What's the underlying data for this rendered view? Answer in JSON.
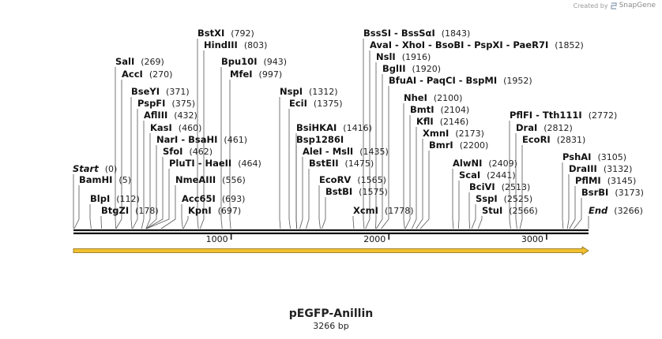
{
  "credit": {
    "prefix": "Created by",
    "brand": "SnapGene"
  },
  "map": {
    "title": "pEGFP-Anillin",
    "length_label": "3266 bp",
    "length_bp": 3266,
    "ticks": [
      {
        "bp": 1000,
        "label": "1000"
      },
      {
        "bp": 2000,
        "label": "2000"
      },
      {
        "bp": 3000,
        "label": "3000"
      }
    ],
    "features": [
      {
        "name": "Start",
        "pos": "(0)",
        "bp": 0,
        "italic": true
      },
      {
        "name": "End",
        "pos": "(3266)",
        "bp": 3266,
        "italic": true
      }
    ],
    "sites": [
      {
        "names": [
          "BstXI"
        ],
        "pos": "(792)",
        "bp": 792
      },
      {
        "names": [
          "HindIII"
        ],
        "pos": "(803)",
        "bp": 803
      },
      {
        "names": [
          "SalI"
        ],
        "pos": "(269)",
        "bp": 269
      },
      {
        "names": [
          "AccI"
        ],
        "pos": "(270)",
        "bp": 270
      },
      {
        "names": [
          "Bpu10I"
        ],
        "pos": "(943)",
        "bp": 943
      },
      {
        "names": [
          "MfeI"
        ],
        "pos": "(997)",
        "bp": 997
      },
      {
        "names": [
          "BseYI"
        ],
        "pos": "(371)",
        "bp": 371
      },
      {
        "names": [
          "PspFI"
        ],
        "pos": "(375)",
        "bp": 375
      },
      {
        "names": [
          "AflIII"
        ],
        "pos": "(432)",
        "bp": 432
      },
      {
        "names": [
          "KasI"
        ],
        "pos": "(460)",
        "bp": 460
      },
      {
        "names": [
          "NarI",
          "BsaHI"
        ],
        "pos": "(461)",
        "bp": 461
      },
      {
        "names": [
          "SfoI"
        ],
        "pos": "(462)",
        "bp": 462
      },
      {
        "names": [
          "PluTI",
          "HaeII"
        ],
        "pos": "(464)",
        "bp": 464
      },
      {
        "names": [
          "BamHI"
        ],
        "pos": "(5)",
        "bp": 5
      },
      {
        "names": [
          "NmeAIII"
        ],
        "pos": "(556)",
        "bp": 556
      },
      {
        "names": [
          "BlpI"
        ],
        "pos": "(112)",
        "bp": 112
      },
      {
        "names": [
          "Acc65I"
        ],
        "pos": "(693)",
        "bp": 693
      },
      {
        "names": [
          "BtgZI"
        ],
        "pos": "(178)",
        "bp": 178
      },
      {
        "names": [
          "KpnI"
        ],
        "pos": "(697)",
        "bp": 697
      },
      {
        "names": [
          "NspI"
        ],
        "pos": "(1312)",
        "bp": 1312
      },
      {
        "names": [
          "EciI"
        ],
        "pos": "(1375)",
        "bp": 1375
      },
      {
        "names": [
          "BsiHKAI"
        ],
        "pos": "(1416)",
        "bp": 1416
      },
      {
        "names": [
          "Bsp1286I"
        ],
        "pos": "",
        "bp": 1416
      },
      {
        "names": [
          "AleI",
          "MslI"
        ],
        "pos": "(1435)",
        "bp": 1435
      },
      {
        "names": [
          "BstEII"
        ],
        "pos": "(1475)",
        "bp": 1475
      },
      {
        "names": [
          "EcoRV"
        ],
        "pos": "(1565)",
        "bp": 1565
      },
      {
        "names": [
          "BstBI"
        ],
        "pos": "(1575)",
        "bp": 1575
      },
      {
        "names": [
          "XcmI"
        ],
        "pos": "(1778)",
        "bp": 1778
      },
      {
        "names": [
          "BssSI",
          "BssSαI"
        ],
        "pos": "(1843)",
        "bp": 1843
      },
      {
        "names": [
          "AvaI",
          "XhoI",
          "BsoBI",
          "PspXI",
          "PaeR7I"
        ],
        "pos": "(1852)",
        "bp": 1852
      },
      {
        "names": [
          "NslI"
        ],
        "pos": "(1916)",
        "bp": 1916
      },
      {
        "names": [
          "BglII"
        ],
        "pos": "(1920)",
        "bp": 1920
      },
      {
        "names": [
          "BfuAI",
          "PaqCI",
          "BspMI"
        ],
        "pos": "(1952)",
        "bp": 1952
      },
      {
        "names": [
          "NheI"
        ],
        "pos": "(2100)",
        "bp": 2100
      },
      {
        "names": [
          "BmtI"
        ],
        "pos": "(2104)",
        "bp": 2104
      },
      {
        "names": [
          "KflI"
        ],
        "pos": "(2146)",
        "bp": 2146
      },
      {
        "names": [
          "XmnI"
        ],
        "pos": "(2173)",
        "bp": 2173
      },
      {
        "names": [
          "BmrI"
        ],
        "pos": "(2200)",
        "bp": 2200
      },
      {
        "names": [
          "AlwNI"
        ],
        "pos": "(2409)",
        "bp": 2409
      },
      {
        "names": [
          "ScaI"
        ],
        "pos": "(2441)",
        "bp": 2441
      },
      {
        "names": [
          "BciVI"
        ],
        "pos": "(2513)",
        "bp": 2513
      },
      {
        "names": [
          "SspI"
        ],
        "pos": "(2525)",
        "bp": 2525
      },
      {
        "names": [
          "StuI"
        ],
        "pos": "(2566)",
        "bp": 2566
      },
      {
        "names": [
          "PflFI",
          "Tth111I"
        ],
        "pos": "(2772)",
        "bp": 2772
      },
      {
        "names": [
          "DraI"
        ],
        "pos": "(2812)",
        "bp": 2812
      },
      {
        "names": [
          "EcoRI"
        ],
        "pos": "(2831)",
        "bp": 2831
      },
      {
        "names": [
          "PshAI"
        ],
        "pos": "(3105)",
        "bp": 3105
      },
      {
        "names": [
          "DraIII"
        ],
        "pos": "(3132)",
        "bp": 3132
      },
      {
        "names": [
          "PflMI"
        ],
        "pos": "(3145)",
        "bp": 3145
      },
      {
        "names": [
          "BsrBI"
        ],
        "pos": "(3173)",
        "bp": 3173
      }
    ],
    "colors": {
      "backbone": "#111111",
      "feature_arrow": "#f0c030",
      "feature_arrow_edge": "#8a6a10"
    }
  }
}
